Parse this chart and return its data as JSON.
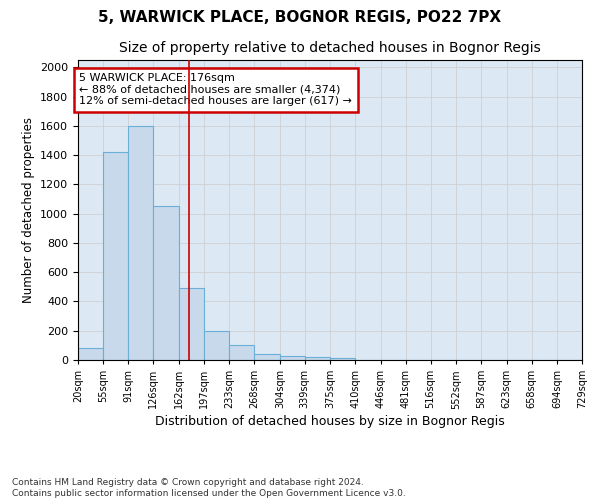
{
  "title_line1": "5, WARWICK PLACE, BOGNOR REGIS, PO22 7PX",
  "title_line2": "Size of property relative to detached houses in Bognor Regis",
  "xlabel": "Distribution of detached houses by size in Bognor Regis",
  "ylabel": "Number of detached properties",
  "footnote": "Contains HM Land Registry data © Crown copyright and database right 2024.\nContains public sector information licensed under the Open Government Licence v3.0.",
  "bin_labels": [
    "20sqm",
    "55sqm",
    "91sqm",
    "126sqm",
    "162sqm",
    "197sqm",
    "233sqm",
    "268sqm",
    "304sqm",
    "339sqm",
    "375sqm",
    "410sqm",
    "446sqm",
    "481sqm",
    "516sqm",
    "552sqm",
    "587sqm",
    "623sqm",
    "658sqm",
    "694sqm",
    "729sqm"
  ],
  "bin_edges": [
    20,
    55,
    91,
    126,
    162,
    197,
    233,
    268,
    304,
    339,
    375,
    410,
    446,
    481,
    516,
    552,
    587,
    623,
    658,
    694,
    729
  ],
  "bar_heights": [
    80,
    1420,
    1600,
    1050,
    490,
    200,
    100,
    40,
    25,
    20,
    15,
    0,
    0,
    0,
    0,
    0,
    0,
    0,
    0,
    0
  ],
  "bar_color": "#c8d9eb",
  "bar_edge_color": "#6baed6",
  "red_line_x": 176,
  "annotation_text": "5 WARWICK PLACE: 176sqm\n← 88% of detached houses are smaller (4,374)\n12% of semi-detached houses are larger (617) →",
  "annotation_box_color": "#ffffff",
  "annotation_box_edge": "#cc0000",
  "ylim": [
    0,
    2050
  ],
  "grid_color": "#cccccc",
  "background_color": "#dce9f5",
  "title_fontsize": 11,
  "subtitle_fontsize": 10,
  "footnote_fontsize": 6.5
}
